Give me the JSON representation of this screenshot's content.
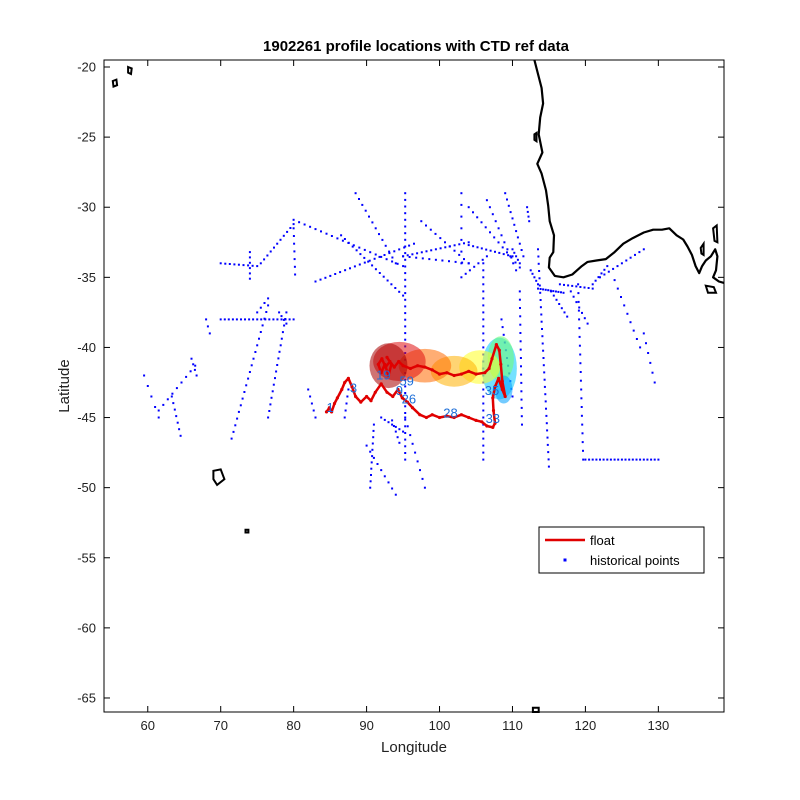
{
  "chart_data": {
    "type": "scatter",
    "title": "1902261 profile locations with CTD ref data",
    "xlabel": "Longitude",
    "ylabel": "Latitude",
    "xlim": [
      54,
      139
    ],
    "ylim": [
      -66,
      -19.5
    ],
    "xticks": [
      60,
      70,
      80,
      90,
      100,
      110,
      120,
      130
    ],
    "yticks": [
      -20,
      -25,
      -30,
      -35,
      -40,
      -45,
      -50,
      -55,
      -60,
      -65
    ],
    "grid": false,
    "legend": {
      "placement": "lower-right",
      "entries": [
        {
          "label": "float",
          "color": "#e00000",
          "marker": "line"
        },
        {
          "label": "historical points",
          "color": "#0000ff",
          "marker": "dot"
        }
      ]
    },
    "colors": {
      "float": "#e00000",
      "historical": "#0000ff",
      "coast": "#000000"
    },
    "float_track": [
      [
        84.5,
        -44.6
      ],
      [
        84.9,
        -44.3
      ],
      [
        85.2,
        -44.6
      ],
      [
        85.6,
        -44.0
      ],
      [
        86.0,
        -43.6
      ],
      [
        86.6,
        -43.0
      ],
      [
        87.0,
        -42.5
      ],
      [
        87.5,
        -42.2
      ],
      [
        88.0,
        -42.8
      ],
      [
        88.5,
        -43.5
      ],
      [
        89.2,
        -43.9
      ],
      [
        90.0,
        -43.5
      ],
      [
        90.6,
        -43.8
      ],
      [
        91.2,
        -43.2
      ],
      [
        92.0,
        -42.6
      ],
      [
        92.8,
        -43.2
      ],
      [
        93.6,
        -43.5
      ],
      [
        94.3,
        -43.0
      ],
      [
        94.9,
        -43.6
      ],
      [
        95.6,
        -43.9
      ],
      [
        96.3,
        -44.3
      ],
      [
        97.3,
        -44.8
      ],
      [
        98.2,
        -45.0
      ],
      [
        99.0,
        -44.8
      ],
      [
        100.0,
        -45.0
      ],
      [
        101.0,
        -44.9
      ],
      [
        102.0,
        -45.0
      ],
      [
        103.0,
        -44.8
      ],
      [
        104.0,
        -45.0
      ],
      [
        105.0,
        -45.2
      ],
      [
        105.8,
        -45.3
      ],
      [
        106.5,
        -45.6
      ],
      [
        107.3,
        -45.7
      ],
      [
        107.6,
        -45.4
      ],
      [
        107.4,
        -44.5
      ],
      [
        107.3,
        -43.6
      ],
      [
        107.6,
        -42.8
      ],
      [
        108.1,
        -42.2
      ],
      [
        108.6,
        -43.0
      ],
      [
        109.0,
        -43.5
      ],
      [
        108.6,
        -42.4
      ],
      [
        108.4,
        -41.2
      ],
      [
        108.2,
        -40.2
      ],
      [
        107.8,
        -39.8
      ],
      [
        107.2,
        -40.8
      ],
      [
        106.8,
        -41.5
      ],
      [
        106.2,
        -41.8
      ],
      [
        105.0,
        -41.9
      ],
      [
        104.0,
        -41.7
      ],
      [
        103.0,
        -41.9
      ],
      [
        102.0,
        -42.0
      ],
      [
        101.0,
        -41.8
      ],
      [
        100.0,
        -41.9
      ],
      [
        99.0,
        -41.6
      ],
      [
        98.0,
        -41.4
      ],
      [
        97.0,
        -41.3
      ],
      [
        96.0,
        -41.5
      ],
      [
        95.0,
        -41.3
      ],
      [
        94.4,
        -41.0
      ],
      [
        93.8,
        -41.4
      ],
      [
        93.2,
        -41.0
      ],
      [
        92.6,
        -41.4
      ],
      [
        92.1,
        -40.8
      ],
      [
        91.6,
        -41.2
      ],
      [
        92.0,
        -41.8
      ],
      [
        92.5,
        -41.2
      ],
      [
        93.0,
        -42.0
      ],
      [
        93.4,
        -41.2
      ],
      [
        92.8,
        -40.7
      ]
    ],
    "profile_number_labels": [
      {
        "text": "1",
        "x": 85.0,
        "y": -44.6
      },
      {
        "text": "3",
        "x": 88.2,
        "y": -43.2
      },
      {
        "text": "9",
        "x": 94.5,
        "y": -43.4
      },
      {
        "text": "19",
        "x": 92.3,
        "y": -42.3
      },
      {
        "text": "26",
        "x": 95.8,
        "y": -44.0
      },
      {
        "text": "28",
        "x": 101.5,
        "y": -45.0
      },
      {
        "text": "33",
        "x": 107.3,
        "y": -45.4
      },
      {
        "text": "35",
        "x": 107.2,
        "y": -43.4
      },
      {
        "text": "59",
        "x": 95.5,
        "y": -42.7
      }
    ]
  }
}
